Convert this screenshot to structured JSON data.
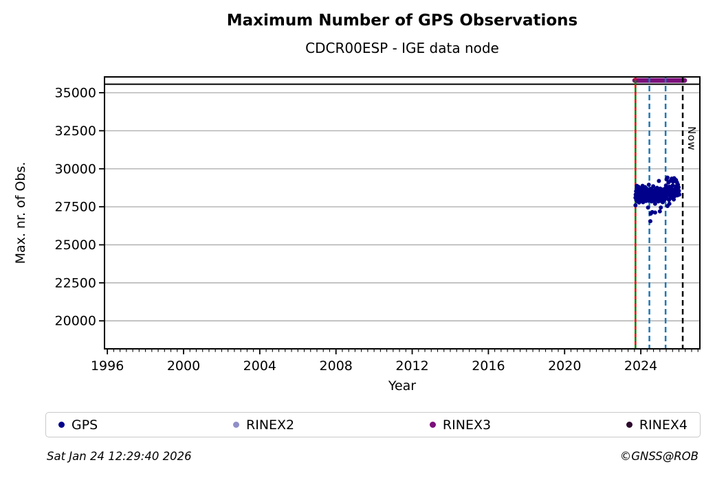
{
  "header": {
    "title": "Maximum Number of GPS Observations",
    "subtitle": "CDCR00ESP - IGE data node"
  },
  "footer": {
    "timestamp": "Sat Jan 24 12:29:40 2026",
    "credit": "©GNSS@ROB"
  },
  "legend": {
    "items": [
      {
        "label": "GPS",
        "color": "#00008b"
      },
      {
        "label": "RINEX2",
        "color": "#8f8fc8"
      },
      {
        "label": "RINEX3",
        "color": "#7b0f7b"
      },
      {
        "label": "RINEX4",
        "color": "#2c092c"
      }
    ]
  },
  "chart_data": {
    "type": "scatter",
    "title": "Maximum Number of GPS Observations",
    "subtitle": "CDCR00ESP - IGE data node",
    "xlabel": "Year",
    "ylabel": "Max. nr. of Obs.",
    "xlim": [
      1995.85,
      2027.1
    ],
    "ylim": [
      18160,
      36040
    ],
    "x_ticks": [
      1996,
      2000,
      2004,
      2008,
      2012,
      2016,
      2020,
      2024
    ],
    "y_ticks": [
      20000,
      22500,
      25000,
      27500,
      30000,
      32500,
      35000
    ],
    "x_minor_per_year": 3,
    "grid": "horizontal-only",
    "grid_color": "#b0b0b0",
    "hline": {
      "value": 35560,
      "color": "#000000"
    },
    "rinex3_segment": {
      "y": 35810,
      "x_start": 2023.68,
      "x_end": 2026.3,
      "color": "#7b0f7b"
    },
    "vlines": [
      {
        "name": "data-start-line",
        "x": 2023.72,
        "style": "solid-with-red-dash",
        "color": "#008000",
        "overlay_color": "#ff0000"
      },
      {
        "name": "event-line-1",
        "x": 2024.45,
        "style": "dashed",
        "color": "#1f77b4"
      },
      {
        "name": "event-line-2",
        "x": 2025.3,
        "style": "dashed",
        "color": "#1f77b4"
      },
      {
        "name": "now-line",
        "x": 2026.2,
        "style": "dashed",
        "color": "#000000",
        "label": "Now"
      }
    ],
    "series": [
      {
        "name": "GPS",
        "color": "#00008b",
        "marker_radius": 3,
        "points": [
          [
            2023.72,
            28100
          ],
          [
            2023.72,
            27600
          ],
          [
            2023.73,
            28300
          ],
          [
            2023.75,
            28520
          ],
          [
            2023.76,
            27950
          ],
          [
            2023.78,
            28700
          ],
          [
            2023.79,
            28880
          ],
          [
            2023.8,
            28150
          ],
          [
            2023.82,
            28600
          ],
          [
            2023.83,
            27850
          ],
          [
            2023.85,
            28400
          ],
          [
            2023.86,
            28250
          ],
          [
            2023.87,
            28820
          ],
          [
            2023.88,
            28050
          ],
          [
            2023.9,
            28550
          ],
          [
            2023.91,
            27780
          ],
          [
            2023.93,
            28350
          ],
          [
            2023.94,
            28680
          ],
          [
            2023.96,
            28100
          ],
          [
            2023.97,
            28480
          ],
          [
            2023.98,
            27900
          ],
          [
            2024.0,
            28600
          ],
          [
            2024.02,
            28200
          ],
          [
            2024.04,
            28750
          ],
          [
            2024.05,
            27980
          ],
          [
            2024.07,
            28430
          ],
          [
            2024.09,
            28880
          ],
          [
            2024.1,
            28300
          ],
          [
            2024.12,
            27800
          ],
          [
            2024.13,
            28520
          ],
          [
            2024.15,
            28150
          ],
          [
            2024.17,
            28650
          ],
          [
            2024.18,
            27950
          ],
          [
            2024.2,
            28380
          ],
          [
            2024.22,
            28800
          ],
          [
            2024.23,
            28080
          ],
          [
            2024.25,
            28500
          ],
          [
            2024.27,
            27880
          ],
          [
            2024.28,
            28280
          ],
          [
            2024.3,
            28700
          ],
          [
            2024.32,
            28000
          ],
          [
            2024.33,
            28450
          ],
          [
            2024.35,
            28180
          ],
          [
            2024.37,
            28620
          ],
          [
            2024.38,
            27450
          ],
          [
            2024.4,
            27900
          ],
          [
            2024.42,
            28950
          ],
          [
            2024.43,
            28350
          ],
          [
            2024.45,
            28100
          ],
          [
            2024.47,
            28520
          ],
          [
            2024.48,
            27980
          ],
          [
            2024.5,
            26550
          ],
          [
            2024.5,
            28300
          ],
          [
            2024.52,
            27050
          ],
          [
            2024.52,
            28680
          ],
          [
            2024.53,
            28150
          ],
          [
            2024.55,
            28480
          ],
          [
            2024.57,
            27850
          ],
          [
            2024.58,
            28270
          ],
          [
            2024.6,
            27150
          ],
          [
            2024.6,
            28600
          ],
          [
            2024.62,
            28050
          ],
          [
            2024.63,
            28420
          ],
          [
            2024.65,
            28850
          ],
          [
            2024.67,
            28200
          ],
          [
            2024.68,
            27900
          ],
          [
            2024.7,
            28550
          ],
          [
            2024.72,
            28120
          ],
          [
            2024.73,
            28400
          ],
          [
            2024.75,
            27120
          ],
          [
            2024.75,
            27700
          ],
          [
            2024.77,
            28650
          ],
          [
            2024.78,
            28230
          ],
          [
            2024.8,
            28500
          ],
          [
            2024.82,
            27950
          ],
          [
            2024.83,
            28330
          ],
          [
            2024.85,
            28750
          ],
          [
            2024.87,
            28080
          ],
          [
            2024.9,
            28400
          ],
          [
            2024.92,
            27850
          ],
          [
            2024.93,
            28600
          ],
          [
            2024.95,
            29200
          ],
          [
            2024.95,
            28180
          ],
          [
            2024.97,
            28480
          ],
          [
            2024.98,
            27980
          ],
          [
            2025.0,
            27200
          ],
          [
            2025.02,
            28700
          ],
          [
            2025.03,
            28120
          ],
          [
            2025.05,
            28520
          ],
          [
            2025.05,
            27450
          ],
          [
            2025.07,
            27880
          ],
          [
            2025.08,
            28300
          ],
          [
            2025.1,
            28640
          ],
          [
            2025.12,
            28020
          ],
          [
            2025.13,
            28460
          ],
          [
            2025.15,
            27800
          ],
          [
            2025.17,
            28250
          ],
          [
            2025.18,
            28580
          ],
          [
            2025.2,
            28150
          ],
          [
            2025.22,
            28420
          ],
          [
            2025.23,
            27930
          ],
          [
            2025.25,
            28680
          ],
          [
            2025.27,
            28280
          ],
          [
            2025.3,
            28500
          ],
          [
            2025.32,
            28900
          ],
          [
            2025.33,
            28200
          ],
          [
            2025.35,
            29300
          ],
          [
            2025.37,
            28600
          ],
          [
            2025.38,
            28050
          ],
          [
            2025.4,
            29420
          ],
          [
            2025.4,
            27550
          ],
          [
            2025.42,
            28750
          ],
          [
            2025.43,
            28350
          ],
          [
            2025.45,
            29100
          ],
          [
            2025.47,
            28480
          ],
          [
            2025.48,
            27950
          ],
          [
            2025.5,
            28820
          ],
          [
            2025.5,
            27700
          ],
          [
            2025.52,
            28250
          ],
          [
            2025.53,
            28620
          ],
          [
            2025.55,
            29200
          ],
          [
            2025.57,
            28400
          ],
          [
            2025.58,
            28080
          ],
          [
            2025.6,
            28700
          ],
          [
            2025.62,
            29350
          ],
          [
            2025.63,
            28150
          ],
          [
            2025.65,
            28550
          ],
          [
            2025.67,
            28900
          ],
          [
            2025.68,
            28300
          ],
          [
            2025.7,
            29150
          ],
          [
            2025.72,
            28450
          ],
          [
            2025.73,
            27980
          ],
          [
            2025.75,
            29380
          ],
          [
            2025.77,
            28650
          ],
          [
            2025.78,
            28200
          ],
          [
            2025.8,
            29300
          ],
          [
            2025.82,
            28520
          ],
          [
            2025.83,
            28850
          ],
          [
            2025.85,
            29250
          ],
          [
            2025.87,
            28380
          ],
          [
            2025.88,
            28700
          ],
          [
            2025.9,
            29100
          ],
          [
            2025.92,
            28250
          ],
          [
            2025.93,
            28600
          ],
          [
            2025.95,
            28950
          ],
          [
            2025.97,
            28420
          ],
          [
            2025.98,
            28780
          ],
          [
            2026.0,
            28550
          ],
          [
            2026.02,
            28300
          ]
        ]
      }
    ]
  }
}
